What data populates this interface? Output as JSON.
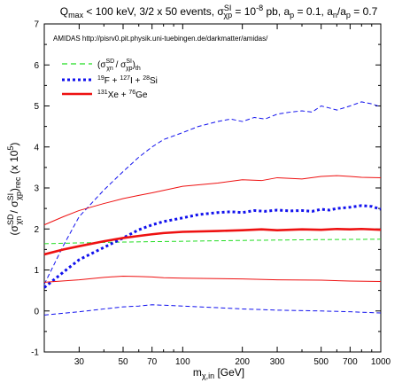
{
  "chart_data": {
    "type": "line",
    "title": "Q_max < 100 keV, 3/2 x 50 events, σ^SI_χp = 10^-8 pb, a_p = 0.1, a_n/a_p = 0.7",
    "note": "AMIDAS   http://pisrv0.pit.physik.uni-tuebingen.de/darkmatter/amidas/",
    "xlabel": "m_χ,in [GeV]",
    "ylabel": "(σ^SD_χn / σ^SI_χp)_rec (x 10^5)",
    "x_scale": "log",
    "xlim": [
      20,
      1000
    ],
    "ylim": [
      -1,
      7
    ],
    "x_ticks": [
      30,
      50,
      70,
      100,
      200,
      300,
      500,
      700,
      1000
    ],
    "x_tick_labels": [
      "30",
      "50",
      "70",
      "100",
      "200",
      "300",
      "500",
      "700",
      "1000"
    ],
    "y_ticks": [
      -1,
      0,
      1,
      2,
      3,
      4,
      5,
      6,
      7
    ],
    "y_tick_labels": [
      "-1",
      "0",
      "1",
      "2",
      "3",
      "4",
      "5",
      "6",
      "7"
    ],
    "legend_position": "top-left",
    "legend": [
      {
        "label_main": "(σ",
        "sup1": "SD",
        "sub1": "χn",
        "label_mid": " / σ",
        "sup2": "SI",
        "sub2": "χp",
        "label_end": ")",
        "sub3": "th",
        "color": "#22dd22",
        "style": "dashed"
      },
      {
        "sup1": "19",
        "t1": "F + ",
        "sup2": "127",
        "t2": "I + ",
        "sup3": "28",
        "t3": "Si",
        "color": "#1111ee",
        "style": "dotted"
      },
      {
        "sup1": "131",
        "t1": "Xe + ",
        "sup2": "76",
        "t2": "Ge",
        "color": "#ee1111",
        "style": "solid"
      }
    ],
    "series": [
      {
        "name": "theory",
        "color": "#22dd22",
        "style": "dashed",
        "width": 1,
        "points": [
          [
            20,
            1.64
          ],
          [
            30,
            1.66
          ],
          [
            50,
            1.68
          ],
          [
            100,
            1.7
          ],
          [
            200,
            1.72
          ],
          [
            500,
            1.74
          ],
          [
            1000,
            1.75
          ]
        ]
      },
      {
        "name": "FISi_mean",
        "color": "#1111ee",
        "style": "dotted",
        "width": 3,
        "points": [
          [
            20,
            0.57
          ],
          [
            25,
            0.95
          ],
          [
            30,
            1.25
          ],
          [
            40,
            1.55
          ],
          [
            50,
            1.78
          ],
          [
            60,
            1.98
          ],
          [
            70,
            2.1
          ],
          [
            80,
            2.18
          ],
          [
            100,
            2.27
          ],
          [
            120,
            2.35
          ],
          [
            150,
            2.4
          ],
          [
            175,
            2.42
          ],
          [
            200,
            2.4
          ],
          [
            230,
            2.45
          ],
          [
            260,
            2.43
          ],
          [
            300,
            2.46
          ],
          [
            350,
            2.44
          ],
          [
            400,
            2.45
          ],
          [
            450,
            2.43
          ],
          [
            500,
            2.48
          ],
          [
            550,
            2.46
          ],
          [
            600,
            2.5
          ],
          [
            700,
            2.53
          ],
          [
            800,
            2.57
          ],
          [
            900,
            2.55
          ],
          [
            1000,
            2.48
          ]
        ]
      },
      {
        "name": "FISi_upper",
        "color": "#1111ee",
        "style": "dashed",
        "width": 1,
        "points": [
          [
            20,
            0.65
          ],
          [
            25,
            1.6
          ],
          [
            30,
            2.3
          ],
          [
            40,
            2.95
          ],
          [
            50,
            3.4
          ],
          [
            60,
            3.75
          ],
          [
            70,
            4.0
          ],
          [
            80,
            4.18
          ],
          [
            100,
            4.35
          ],
          [
            120,
            4.5
          ],
          [
            150,
            4.62
          ],
          [
            175,
            4.68
          ],
          [
            200,
            4.62
          ],
          [
            230,
            4.72
          ],
          [
            260,
            4.68
          ],
          [
            300,
            4.8
          ],
          [
            350,
            4.85
          ],
          [
            400,
            4.88
          ],
          [
            450,
            4.85
          ],
          [
            500,
            5.0
          ],
          [
            550,
            4.95
          ],
          [
            600,
            4.9
          ],
          [
            700,
            5.0
          ],
          [
            800,
            5.1
          ],
          [
            900,
            5.05
          ],
          [
            1000,
            4.98
          ]
        ]
      },
      {
        "name": "FISi_lower",
        "color": "#1111ee",
        "style": "dashed",
        "width": 1,
        "points": [
          [
            20,
            -0.1
          ],
          [
            30,
            -0.02
          ],
          [
            40,
            0.05
          ],
          [
            50,
            0.1
          ],
          [
            60,
            0.12
          ],
          [
            70,
            0.15
          ],
          [
            80,
            0.14
          ],
          [
            100,
            0.12
          ],
          [
            150,
            0.08
          ],
          [
            200,
            0.05
          ],
          [
            300,
            0.02
          ],
          [
            500,
            0.0
          ],
          [
            700,
            -0.02
          ],
          [
            1000,
            -0.05
          ]
        ]
      },
      {
        "name": "XeGe_mean",
        "color": "#ee1111",
        "style": "solid",
        "width": 2.6,
        "points": [
          [
            20,
            1.38
          ],
          [
            25,
            1.5
          ],
          [
            30,
            1.58
          ],
          [
            40,
            1.7
          ],
          [
            50,
            1.78
          ],
          [
            60,
            1.83
          ],
          [
            70,
            1.87
          ],
          [
            80,
            1.9
          ],
          [
            100,
            1.93
          ],
          [
            150,
            1.95
          ],
          [
            200,
            1.97
          ],
          [
            250,
            1.99
          ],
          [
            300,
            1.97
          ],
          [
            400,
            1.99
          ],
          [
            500,
            1.98
          ],
          [
            600,
            2.0
          ],
          [
            700,
            1.99
          ],
          [
            800,
            2.0
          ],
          [
            1000,
            1.98
          ]
        ]
      },
      {
        "name": "XeGe_upper",
        "color": "#ee1111",
        "style": "solid",
        "width": 1,
        "points": [
          [
            20,
            2.1
          ],
          [
            25,
            2.3
          ],
          [
            30,
            2.45
          ],
          [
            40,
            2.62
          ],
          [
            50,
            2.74
          ],
          [
            60,
            2.82
          ],
          [
            70,
            2.88
          ],
          [
            80,
            2.94
          ],
          [
            100,
            3.04
          ],
          [
            150,
            3.12
          ],
          [
            200,
            3.2
          ],
          [
            250,
            3.18
          ],
          [
            300,
            3.25
          ],
          [
            400,
            3.22
          ],
          [
            500,
            3.28
          ],
          [
            600,
            3.3
          ],
          [
            700,
            3.28
          ],
          [
            800,
            3.26
          ],
          [
            1000,
            3.25
          ]
        ]
      },
      {
        "name": "XeGe_lower",
        "color": "#ee1111",
        "style": "solid",
        "width": 1,
        "points": [
          [
            20,
            0.7
          ],
          [
            30,
            0.76
          ],
          [
            40,
            0.82
          ],
          [
            50,
            0.85
          ],
          [
            60,
            0.84
          ],
          [
            70,
            0.83
          ],
          [
            80,
            0.81
          ],
          [
            100,
            0.8
          ],
          [
            150,
            0.79
          ],
          [
            200,
            0.78
          ],
          [
            300,
            0.76
          ],
          [
            500,
            0.75
          ],
          [
            700,
            0.73
          ],
          [
            1000,
            0.72
          ]
        ]
      }
    ]
  }
}
